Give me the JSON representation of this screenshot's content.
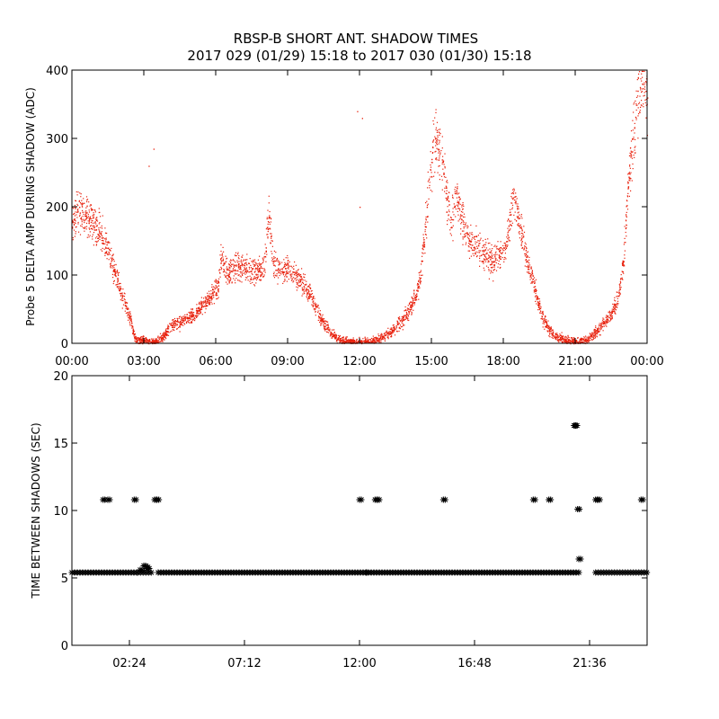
{
  "title_line1": "RBSP-B SHORT ANT. SHADOW TIMES",
  "title_line2": "2017 029 (01/29) 15:18 to 2017 030 (01/30) 15:18",
  "chart_data": [
    {
      "type": "scatter",
      "ylabel": "Probe 5 DELTA AMP DURING SHADOW (ADC)",
      "xlabel": "",
      "xlim": [
        0,
        24
      ],
      "ylim": [
        0,
        400
      ],
      "xticks": [
        {
          "value": 0,
          "label": "00:00"
        },
        {
          "value": 3,
          "label": "03:00"
        },
        {
          "value": 6,
          "label": "06:00"
        },
        {
          "value": 9,
          "label": "09:00"
        },
        {
          "value": 12,
          "label": "12:00"
        },
        {
          "value": 15,
          "label": "15:00"
        },
        {
          "value": 18,
          "label": "18:00"
        },
        {
          "value": 21,
          "label": "21:00"
        },
        {
          "value": 24,
          "label": "00:00"
        }
      ],
      "yticks": [
        {
          "value": 0,
          "label": "0"
        },
        {
          "value": 100,
          "label": "100"
        },
        {
          "value": 200,
          "label": "200"
        },
        {
          "value": 300,
          "label": "300"
        },
        {
          "value": 400,
          "label": "400"
        }
      ],
      "marker_color": "#e8200c",
      "series": [
        {
          "x_units": "hours",
          "x": [
            0.0,
            0.3,
            0.6,
            0.9,
            1.2,
            1.5,
            1.8,
            2.1,
            2.4,
            2.6,
            2.7,
            3.0,
            3.3,
            3.5,
            3.8,
            4.2,
            4.6,
            5.0,
            5.4,
            5.8,
            6.1,
            6.2,
            6.5,
            6.8,
            7.2,
            7.6,
            8.0,
            8.2,
            8.4,
            8.6,
            8.9,
            9.2,
            9.6,
            10.0,
            10.4,
            10.8,
            11.2,
            11.6,
            12.0,
            12.3,
            12.6,
            13.0,
            13.4,
            13.8,
            14.2,
            14.5,
            14.8,
            15.0,
            15.2,
            15.5,
            15.8,
            16.0,
            16.3,
            16.6,
            16.9,
            17.2,
            17.5,
            17.8,
            18.1,
            18.4,
            18.7,
            19.0,
            19.3,
            19.6,
            19.9,
            20.2,
            20.6,
            21.0,
            21.4,
            21.8,
            22.2,
            22.5,
            22.8,
            23.0,
            23.2,
            23.4,
            23.6,
            23.8,
            24.0
          ],
          "y": [
            180,
            200,
            185,
            170,
            160,
            140,
            100,
            70,
            40,
            10,
            5,
            5,
            2,
            3,
            10,
            28,
            32,
            40,
            55,
            70,
            85,
            125,
            100,
            115,
            110,
            105,
            110,
            185,
            120,
            110,
            110,
            105,
            90,
            65,
            35,
            15,
            5,
            3,
            2,
            3,
            5,
            10,
            20,
            35,
            60,
            90,
            200,
            270,
            300,
            250,
            170,
            220,
            180,
            150,
            140,
            130,
            120,
            130,
            140,
            220,
            170,
            120,
            80,
            40,
            20,
            10,
            5,
            3,
            5,
            15,
            30,
            45,
            70,
            120,
            230,
            300,
            370,
            380,
            360
          ]
        }
      ]
    },
    {
      "type": "scatter",
      "ylabel": "TIME BETWEEN SHADOWS (SEC)",
      "xlabel": "",
      "xlim": [
        0,
        24
      ],
      "ylim": [
        0,
        20
      ],
      "xticks": [
        {
          "value": 2.4,
          "label": "02:24"
        },
        {
          "value": 7.2,
          "label": "07:12"
        },
        {
          "value": 12.0,
          "label": "12:00"
        },
        {
          "value": 16.8,
          "label": "16:48"
        },
        {
          "value": 21.6,
          "label": "21:36"
        }
      ],
      "yticks": [
        {
          "value": 0,
          "label": "0"
        },
        {
          "value": 5,
          "label": "5"
        },
        {
          "value": 10,
          "label": "10"
        },
        {
          "value": 15,
          "label": "15"
        },
        {
          "value": 20,
          "label": "20"
        }
      ],
      "marker": "asterisk",
      "baseline": {
        "value": 5.4,
        "x_ranges": [
          [
            0.0,
            2.7
          ],
          [
            2.75,
            3.35
          ],
          [
            3.6,
            21.25
          ],
          [
            21.85,
            24.0
          ]
        ]
      },
      "series": [
        {
          "x": [
            1.3,
            1.5,
            2.6,
            2.85,
            3.0,
            3.1,
            3.15,
            3.45,
            3.55,
            12.0,
            12.3,
            12.65,
            12.75,
            15.5,
            19.25,
            19.9,
            20.95,
            21.0,
            21.1,
            21.15,
            21.85,
            21.95,
            23.75
          ],
          "y": [
            10.8,
            10.8,
            10.8,
            5.6,
            5.9,
            5.8,
            5.7,
            10.8,
            10.8,
            10.8,
            5.4,
            10.8,
            10.8,
            10.8,
            10.8,
            10.8,
            16.3,
            16.3,
            10.1,
            6.4,
            10.8,
            10.8,
            10.8
          ]
        }
      ]
    }
  ]
}
